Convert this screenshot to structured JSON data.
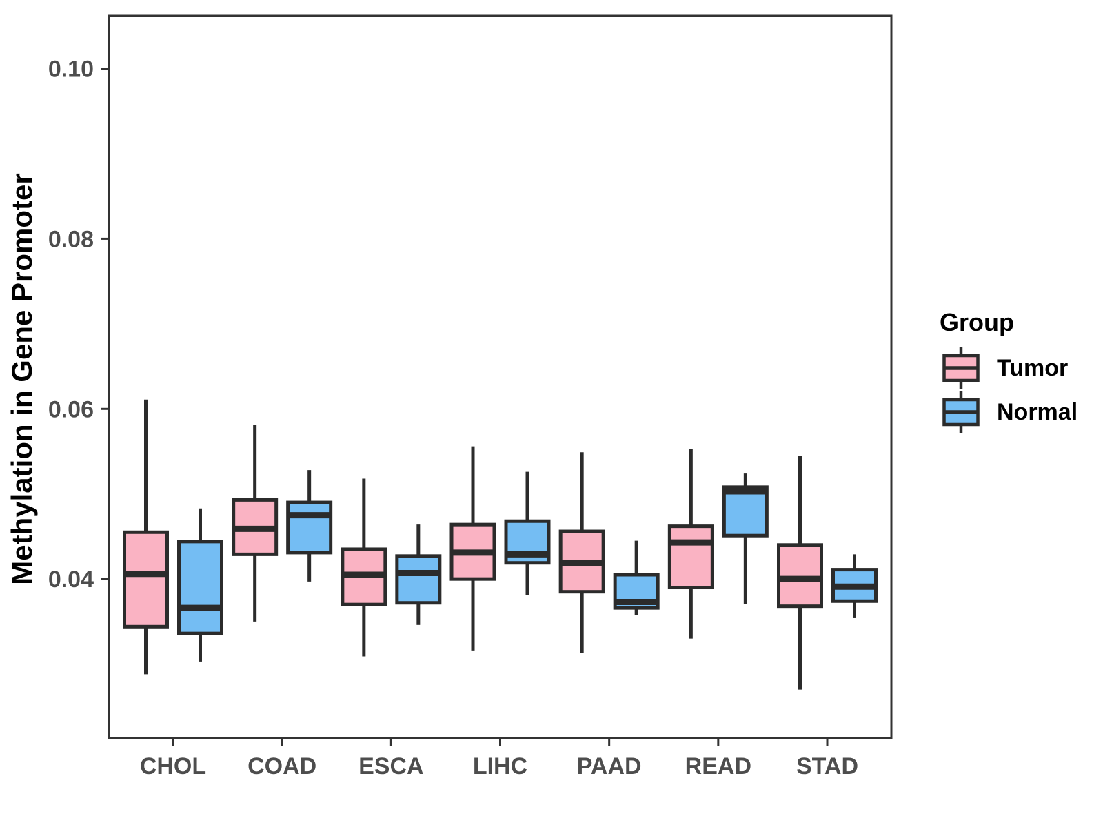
{
  "figure": {
    "background": "#FFFFFF",
    "panel_border_color": "#333333",
    "axis_text_color": "#4D4D4D",
    "axis_title_color": "#000000",
    "box_stroke_color": "#2B2B2B",
    "y_axis_title": "Methylation in Gene Promoter",
    "legend": {
      "title": "Group",
      "items": [
        {
          "label": "Tumor",
          "color": "#FAB3C3"
        },
        {
          "label": "Normal",
          "color": "#74BDF3"
        }
      ]
    }
  },
  "chart_data": {
    "type": "boxplot",
    "title": "",
    "xlabel": "",
    "ylabel": "Methylation in Gene Promoter",
    "grid": false,
    "legend_position": "right",
    "categories": [
      "CHOL",
      "COAD",
      "ESCA",
      "LIHC",
      "PAAD",
      "READ",
      "STAD"
    ],
    "yticks": [
      0.04,
      0.06,
      0.08,
      0.1
    ],
    "ytick_labels": [
      "0.04",
      "0.06",
      "0.08",
      "0.10"
    ],
    "ylim": [
      0.0213,
      0.1062
    ],
    "series": [
      {
        "name": "Tumor",
        "color": "#FAB3C3",
        "boxes": [
          {
            "category": "CHOL",
            "whisker_low": 0.0288,
            "q1": 0.0344,
            "median": 0.0406,
            "q3": 0.0455,
            "whisker_high": 0.0611
          },
          {
            "category": "COAD",
            "whisker_low": 0.035,
            "q1": 0.0429,
            "median": 0.0459,
            "q3": 0.0493,
            "whisker_high": 0.0581
          },
          {
            "category": "ESCA",
            "whisker_low": 0.0309,
            "q1": 0.037,
            "median": 0.0405,
            "q3": 0.0435,
            "whisker_high": 0.0518
          },
          {
            "category": "LIHC",
            "whisker_low": 0.0316,
            "q1": 0.04,
            "median": 0.0431,
            "q3": 0.0464,
            "whisker_high": 0.0556
          },
          {
            "category": "PAAD",
            "whisker_low": 0.0313,
            "q1": 0.0385,
            "median": 0.0419,
            "q3": 0.0456,
            "whisker_high": 0.0549
          },
          {
            "category": "READ",
            "whisker_low": 0.033,
            "q1": 0.039,
            "median": 0.0443,
            "q3": 0.0462,
            "whisker_high": 0.0553
          },
          {
            "category": "STAD",
            "whisker_low": 0.027,
            "q1": 0.0368,
            "median": 0.04,
            "q3": 0.044,
            "whisker_high": 0.0545
          }
        ]
      },
      {
        "name": "Normal",
        "color": "#74BDF3",
        "boxes": [
          {
            "category": "CHOL",
            "whisker_low": 0.0303,
            "q1": 0.0336,
            "median": 0.0366,
            "q3": 0.0444,
            "whisker_high": 0.0483
          },
          {
            "category": "COAD",
            "whisker_low": 0.0397,
            "q1": 0.0431,
            "median": 0.0475,
            "q3": 0.049,
            "whisker_high": 0.0528
          },
          {
            "category": "ESCA",
            "whisker_low": 0.0346,
            "q1": 0.0372,
            "median": 0.0407,
            "q3": 0.0427,
            "whisker_high": 0.0464
          },
          {
            "category": "LIHC",
            "whisker_low": 0.0381,
            "q1": 0.0419,
            "median": 0.0429,
            "q3": 0.0468,
            "whisker_high": 0.0526
          },
          {
            "category": "PAAD",
            "whisker_low": 0.0358,
            "q1": 0.0366,
            "median": 0.0373,
            "q3": 0.0405,
            "whisker_high": 0.0445
          },
          {
            "category": "READ",
            "whisker_low": 0.0371,
            "q1": 0.0451,
            "median": 0.0503,
            "q3": 0.0508,
            "whisker_high": 0.0524
          },
          {
            "category": "STAD",
            "whisker_low": 0.0354,
            "q1": 0.0374,
            "median": 0.0391,
            "q3": 0.0411,
            "whisker_high": 0.0429
          }
        ]
      }
    ]
  }
}
